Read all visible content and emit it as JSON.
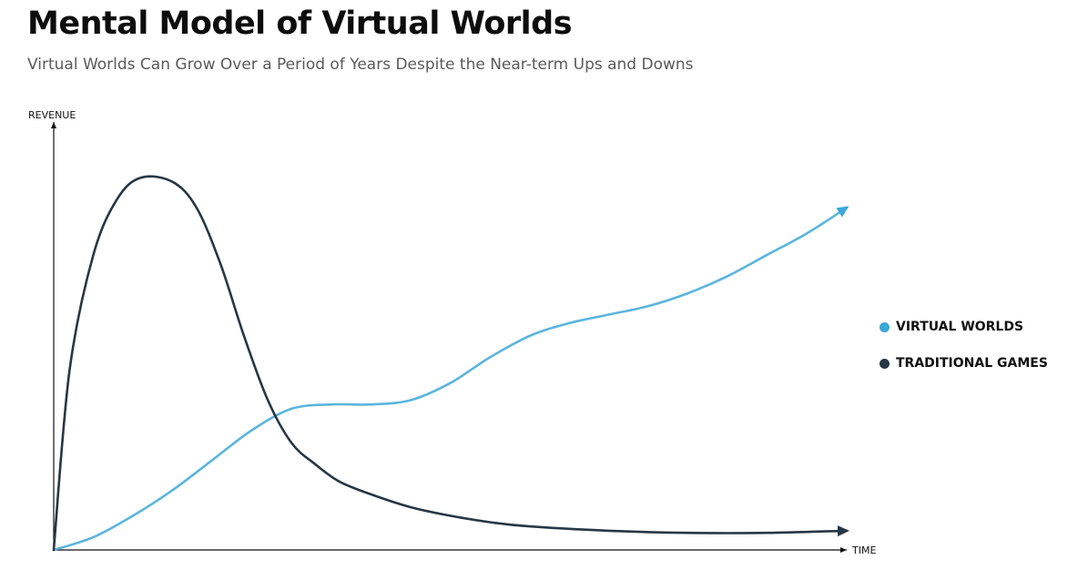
{
  "header": {
    "title": "Mental Model of Virtual Worlds",
    "subtitle": "Virtual Worlds Can Grow Over a Period of Years Despite the Near-term Ups and Downs"
  },
  "colors": {
    "virtual_worlds": "#5bb5dc",
    "virtual_worlds_arrow": "#3aa8d8",
    "traditional_games": "#263745",
    "axis": "#111111"
  },
  "chart_data": {
    "type": "line",
    "title": "Mental Model of Virtual Worlds",
    "subtitle": "Virtual Worlds Can Grow Over a Period of Years Despite the Near-term Ups and Downs",
    "xlabel": "TIME",
    "ylabel": "REVENUE",
    "xlim": [
      0,
      100
    ],
    "ylim": [
      0,
      100
    ],
    "ticks": "none",
    "grid": false,
    "legend_position": "right",
    "series": [
      {
        "name": "VIRTUAL WORLDS",
        "color": "#5bb5dc",
        "end_arrow": true,
        "x": [
          0,
          5,
          10,
          15,
          20,
          25,
          30,
          35,
          40,
          45,
          50,
          55,
          60,
          65,
          70,
          75,
          80,
          85,
          90,
          95,
          100
        ],
        "y": [
          0,
          3,
          8,
          14,
          21,
          28,
          33,
          34,
          34,
          35,
          39,
          45,
          50,
          53,
          55,
          57,
          60,
          64,
          69,
          74,
          80
        ]
      },
      {
        "name": "TRADITIONAL GAMES",
        "color": "#263745",
        "end_arrow": true,
        "x": [
          0,
          2,
          5,
          8,
          11,
          15,
          18,
          21,
          24,
          27,
          30,
          33,
          36,
          40,
          45,
          50,
          55,
          60,
          70,
          80,
          90,
          100
        ],
        "y": [
          0,
          42,
          69,
          82,
          87,
          86,
          80,
          67,
          50,
          35,
          25,
          20,
          16,
          13,
          10,
          8,
          6.5,
          5.5,
          4.5,
          4,
          4,
          4.5
        ]
      }
    ]
  }
}
